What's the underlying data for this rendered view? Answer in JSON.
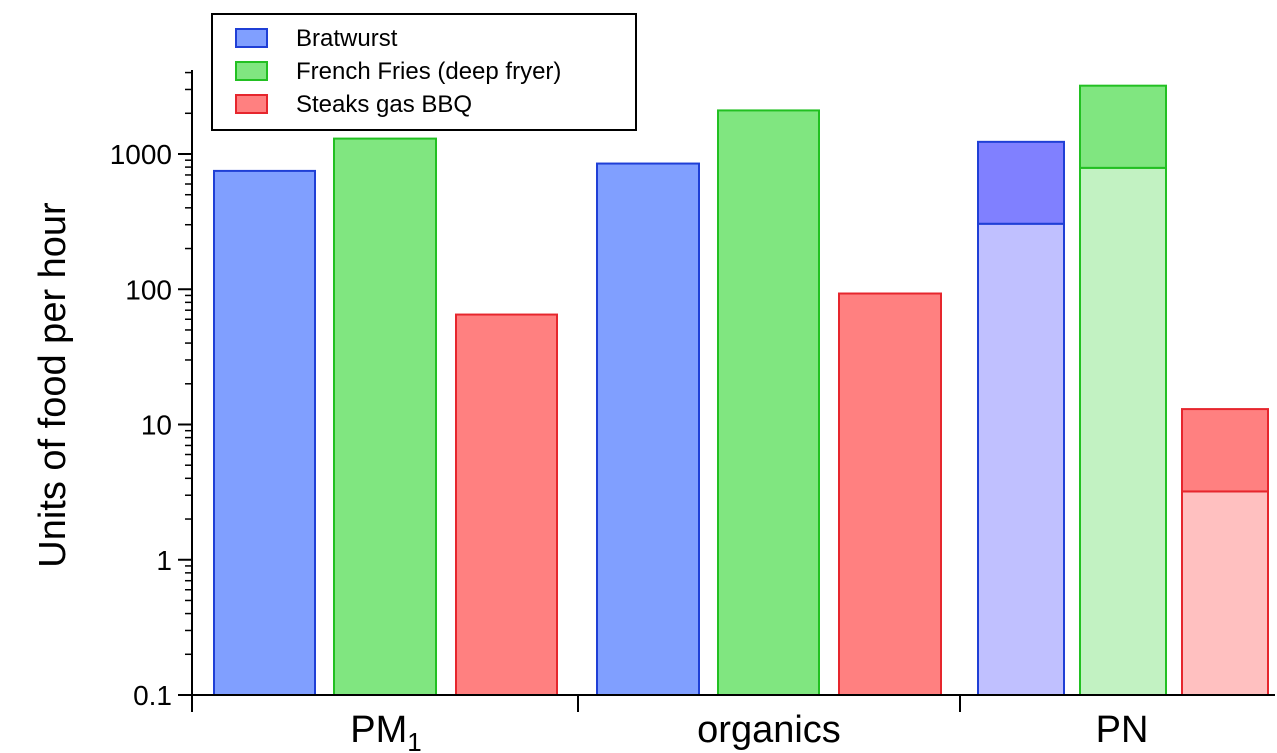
{
  "chart_data": {
    "type": "bar",
    "ylabel": "Units of food per hour",
    "yscale": "log",
    "ylim": [
      0.1,
      4500
    ],
    "yticks": [
      {
        "value": 0.1,
        "label": "0.1"
      },
      {
        "value": 1,
        "label": "1"
      },
      {
        "value": 10,
        "label": "10"
      },
      {
        "value": 100,
        "label": "100"
      },
      {
        "value": 1000,
        "label": "1000"
      }
    ],
    "categories": [
      {
        "label": "PM",
        "subscript": "1"
      },
      {
        "label": "organics",
        "subscript": ""
      },
      {
        "label": "PN",
        "subscript": ""
      }
    ],
    "legend_position": "top-left",
    "series": [
      {
        "name": "Bratwurst",
        "color": "#809fff",
        "edge": "#1f3fd6",
        "values": [
          750,
          850,
          1230
        ],
        "split_values": [
          null,
          null,
          305
        ],
        "split_light_color": "#c0c0ff",
        "split_dark_color": "#8080ff"
      },
      {
        "name": "French Fries (deep fryer)",
        "color": "#80e680",
        "edge": "#22c022",
        "values": [
          1300,
          2100,
          3200
        ],
        "split_values": [
          null,
          null,
          790
        ],
        "split_light_color": "#c2f2c2",
        "split_dark_color": "#80e680"
      },
      {
        "name": "Steaks gas BBQ",
        "color": "#ff8080",
        "edge": "#e6262d",
        "values": [
          65,
          93,
          13
        ],
        "split_values": [
          null,
          null,
          3.2
        ],
        "split_light_color": "#ffc0c0",
        "split_dark_color": "#ff8080"
      }
    ]
  }
}
